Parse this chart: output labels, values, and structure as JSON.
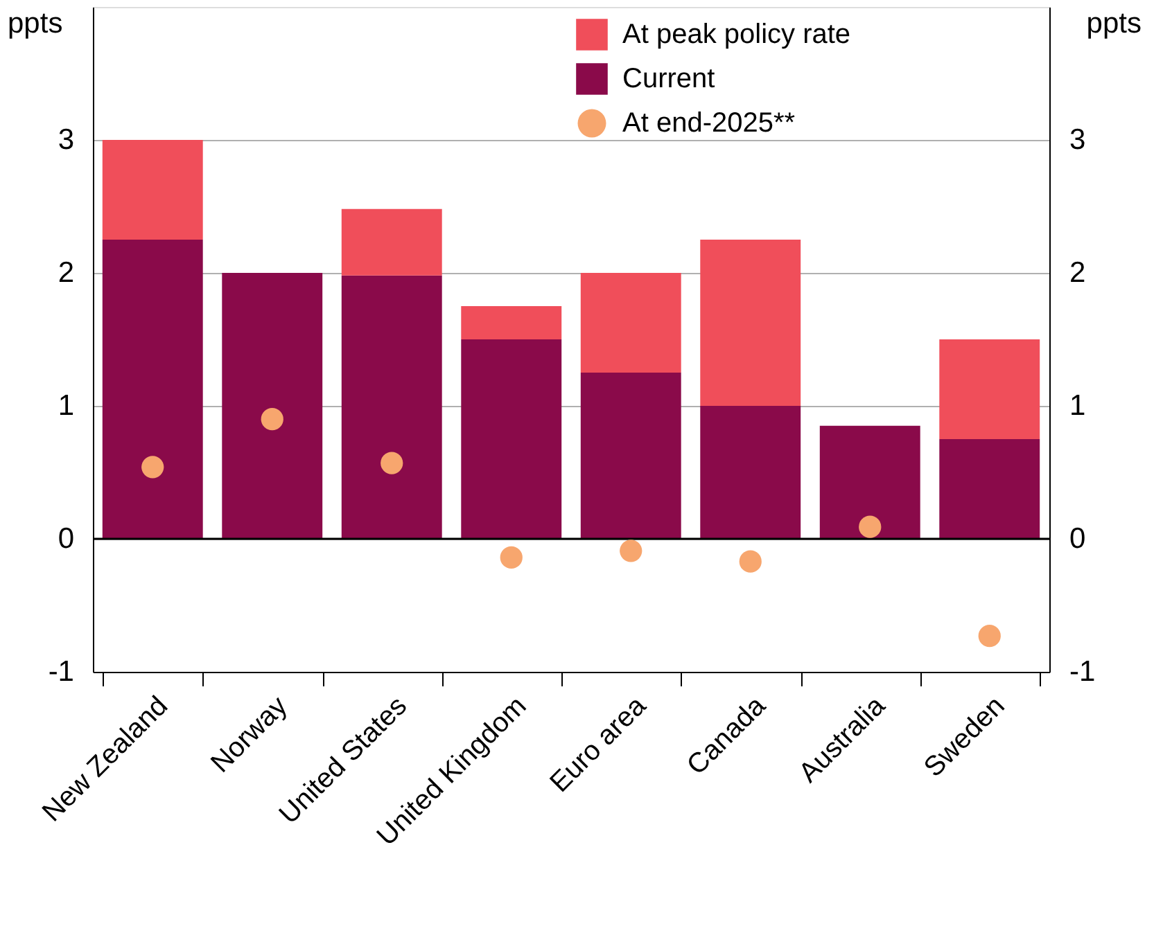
{
  "chart_data": {
    "type": "bar",
    "stacked": true,
    "ylabel": "ppts",
    "y2label": "ppts",
    "categories": [
      "New Zealand",
      "Norway",
      "United States",
      "United Kingdom",
      "Euro area",
      "Canada",
      "Australia",
      "Sweden"
    ],
    "series": [
      {
        "name": "Current",
        "color": "#8a0a4a",
        "values": [
          2.25,
          2.0,
          1.98,
          1.5,
          1.25,
          1.0,
          0.85,
          0.75
        ]
      },
      {
        "name": "At peak policy rate",
        "color": "#f04e5a",
        "values": [
          0.75,
          0.0,
          0.5,
          0.25,
          0.75,
          1.25,
          0.0,
          0.75
        ]
      },
      {
        "name": "At end-2025**",
        "type": "scatter",
        "color": "#f7a66e",
        "x": [
          "New Zealand",
          "Norway",
          "United States",
          "United Kingdom",
          "Euro area",
          "Canada",
          "Australia",
          "Sweden"
        ],
        "values": [
          0.54,
          0.9,
          0.57,
          -0.14,
          -0.09,
          -0.17,
          0.09,
          -0.73
        ]
      }
    ],
    "ylim": [
      -1,
      4
    ],
    "yticks": [
      -1,
      0,
      1,
      2,
      3
    ],
    "y2lim": [
      -1,
      4
    ],
    "y2ticks": [
      -1,
      0,
      1,
      2,
      3
    ],
    "ref_lines": [
      {
        "axis": "y",
        "value": 0,
        "color": "#000000"
      }
    ],
    "grid": "y",
    "legend": "top right",
    "marker": "circle"
  }
}
